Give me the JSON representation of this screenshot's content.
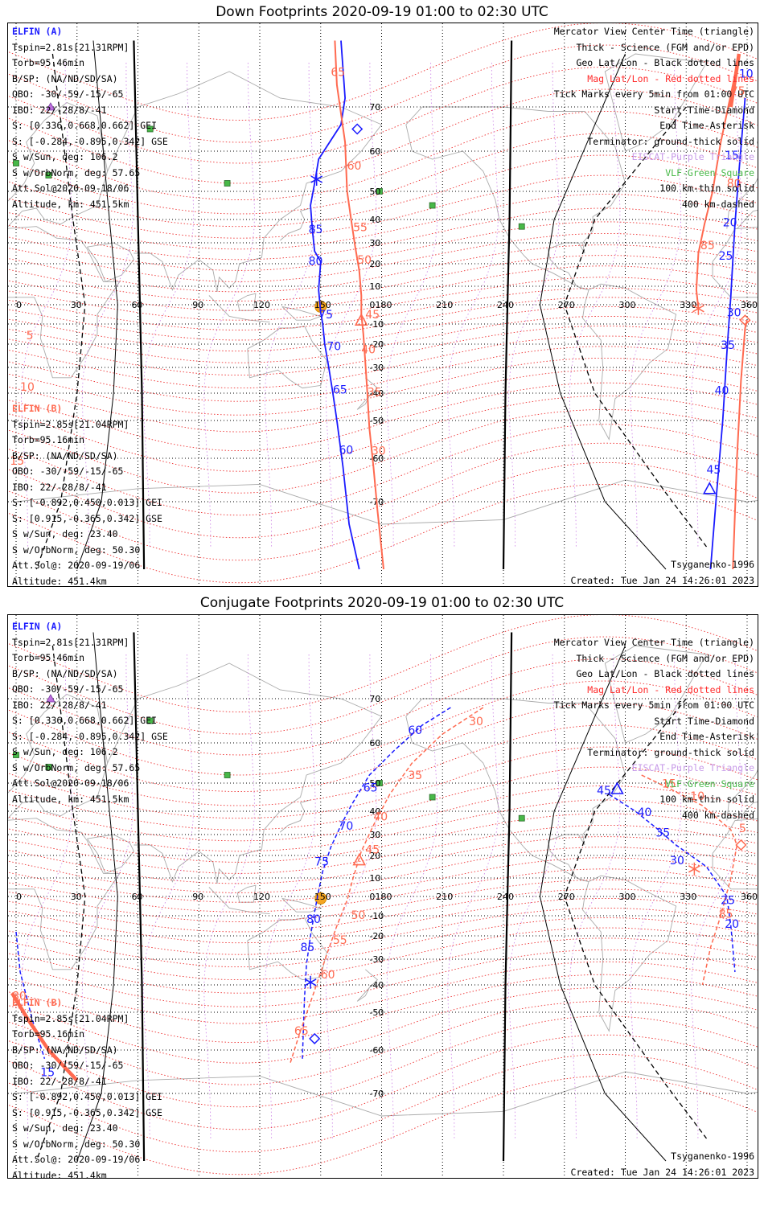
{
  "panels": [
    {
      "title": "Down Footprints 2020-09-19 01:00 to 02:30 UTC",
      "elfin_a": {
        "header": "ELFIN (A)",
        "lines": [
          "Tspin=2.81s[21.31RPM]",
          "Torb=95.46min",
          "B/SP: (NA/ND/SD/SA)",
          "OBO: -30/-59/-15/-65",
          "IBO: 22/-28/8/-41",
          "S: [0.336,0.668,0.662] GEI",
          "S: [-0.284,-0.895,0.342] GSE",
          "S w/Sun, deg: 106.2",
          "S w/OrbNorm, deg: 57.65",
          "Att.Sol@2020-09-18/06",
          "Altitude, km: 451.5km"
        ]
      },
      "elfin_b": {
        "header": "ELFIN (B)",
        "lines": [
          "Tspin=2.85s[21.04RPM]",
          "Torb=95.16min",
          "B/SP: (NA/ND/SD/SA)",
          "OBO: -30/-59/-15/-65",
          "IBO: 22/-28/8/-41",
          "S: [-0.892,0.450,0.013] GEI",
          "S: [0.915,-0.365,0.342] GSE",
          "S w/Sun, deg: 23.40",
          "S w/OrbNorm, deg: 50.30",
          "Att.Sol@: 2020-09-19/06",
          "Altitude: 451.4km"
        ]
      },
      "legend": [
        "Mercator View Center Time (triangle)",
        "Thick - Science (FGM and/or EPD)",
        "Geo Lat/Lon - Black dotted lines",
        "Mag Lat/Lon - Red dotted lines",
        "Tick Marks every 5min from 01:00 UTC",
        "Start Time-Diamond",
        "End Time-Asterisk",
        "Terminator: ground-thick solid",
        "EISCAT-Purple Triangle",
        "VLF-Green Square",
        "100 km-thin solid",
        "400 km-dashed"
      ],
      "model": "Tsyganenko-1996",
      "created": "Created: Tue Jan 24 14:26:01 2023",
      "blue_ticks": [
        {
          "t": "10",
          "lon": 356,
          "lat": 76.6
        },
        {
          "t": "15",
          "lon": 349,
          "lat": 58
        },
        {
          "t": "20",
          "lon": 348,
          "lat": 37
        },
        {
          "t": "25",
          "lon": 346,
          "lat": 22
        },
        {
          "t": "30",
          "lon": 350,
          "lat": -6
        },
        {
          "t": "35",
          "lon": 347,
          "lat": -22
        },
        {
          "t": "40",
          "lon": 344,
          "lat": -40.5
        },
        {
          "t": "45",
          "lon": 340,
          "lat": -63.5
        },
        {
          "t": "85",
          "lon": 144,
          "lat": 34.2
        },
        {
          "t": "80",
          "lon": 144,
          "lat": 19.5
        },
        {
          "t": "75",
          "lon": 149,
          "lat": -7
        },
        {
          "t": "70",
          "lon": 153,
          "lat": -22.5
        },
        {
          "t": "65",
          "lon": 156,
          "lat": -40.2
        },
        {
          "t": "60",
          "lon": 159,
          "lat": -58.8
        }
      ],
      "red_ticks": [
        {
          "t": "65",
          "lon": 155,
          "lat": 77
        },
        {
          "t": "60",
          "lon": 163,
          "lat": 55.4
        },
        {
          "t": "55",
          "lon": 166,
          "lat": 35
        },
        {
          "t": "50",
          "lon": 168,
          "lat": 20
        },
        {
          "t": "45",
          "lon": 172,
          "lat": -7
        },
        {
          "t": "40",
          "lon": 170,
          "lat": -24
        },
        {
          "t": "35",
          "lon": 173,
          "lat": -41
        },
        {
          "t": "30",
          "lon": 175,
          "lat": -59
        },
        {
          "t": "75",
          "lon": 352,
          "lat": 72.7
        },
        {
          "t": "80",
          "lon": 350,
          "lat": 51
        },
        {
          "t": "85",
          "lon": 337,
          "lat": 27
        },
        {
          "t": "5",
          "lon": 5,
          "lat": -17.5
        },
        {
          "t": "10",
          "lon": 2,
          "lat": -39
        },
        {
          "t": "15",
          "lon": -3,
          "lat": -61.5
        }
      ],
      "triangles": [
        {
          "lon": 170,
          "lat": -8,
          "c": "red"
        },
        {
          "lon": 341.5,
          "lat": -67,
          "c": "blue"
        }
      ],
      "diamonds": [
        {
          "lon": 168,
          "lat": 65,
          "c": "blue"
        },
        {
          "lon": 359,
          "lat": -8,
          "c": "red"
        }
      ],
      "asterisks": [
        {
          "lon": 148,
          "lat": 53,
          "c": "blue"
        },
        {
          "lon": 336,
          "lat": -2,
          "c": "red"
        }
      ]
    },
    {
      "title": "Conjugate Footprints 2020-09-19 01:00 to 02:30 UTC",
      "elfin_a": {
        "header": "ELFIN (A)",
        "lines": [
          "Tspin=2.81s[21.31RPM]",
          "Torb=95.46min",
          "B/SP: (NA/ND/SD/SA)",
          "OBO: -30/-59/-15/-65",
          "IBO: 22/-28/8/-41",
          "S: [0.336,0.668,0.662] GEI",
          "S: [-0.284,-0.895,0.342] GSE",
          "S w/Sun, deg: 106.2",
          "S w/OrbNorm, deg: 57.65",
          "Att.Sol@2020-09-18/06",
          "Altitude, km: 451.5km"
        ]
      },
      "elfin_b": {
        "header": "ELFIN (B)",
        "lines": [
          "Tspin=2.85s[21.04RPM]",
          "Torb=95.16min",
          "B/SP: (NA/ND/SD/SA)",
          "OBO: -30/-59/-15/-65",
          "IBO: 22/-28/8/-41",
          "S: [-0.892,0.450,0.013] GEI",
          "S: [0.915,-0.365,0.342] GSE",
          "S w/Sun, deg: 23.40",
          "S w/OrbNorm, deg: 50.30",
          "Att.Sol@: 2020-09-19/06",
          "Altitude: 451.4km"
        ]
      },
      "legend": [
        "Mercator View Center Time (triangle)",
        "Thick - Science (FGM and/or EPD)",
        "Geo Lat/Lon - Black dotted lines",
        "Mag Lat/Lon - Red dotted lines",
        "Tick Marks every 5min from 01:00 UTC",
        "Start Time-Diamond",
        "End Time-Asterisk",
        "Terminator: ground-thick solid",
        "EISCAT-Purple Triangle",
        "VLF-Green Square",
        "100 km-thin solid",
        "400 km-dashed"
      ],
      "model": "Tsyganenko-1996",
      "created": "Created: Tue Jan 24 14:26:01 2023",
      "blue_ticks": [
        {
          "t": "60",
          "lon": 193,
          "lat": 62
        },
        {
          "t": "65",
          "lon": 171,
          "lat": 47
        },
        {
          "t": "70",
          "lon": 159,
          "lat": 32
        },
        {
          "t": "75",
          "lon": 147,
          "lat": 15.5
        },
        {
          "t": "80",
          "lon": 143,
          "lat": -13.5
        },
        {
          "t": "85",
          "lon": 140,
          "lat": -26.5
        },
        {
          "t": "15",
          "lon": 12,
          "lat": -66
        },
        {
          "t": "45",
          "lon": 286,
          "lat": 46
        },
        {
          "t": "40",
          "lon": 306,
          "lat": 38
        },
        {
          "t": "35",
          "lon": 315,
          "lat": 29
        },
        {
          "t": "30",
          "lon": 322,
          "lat": 16
        },
        {
          "t": "25",
          "lon": 347,
          "lat": -4
        },
        {
          "t": "20",
          "lon": 349,
          "lat": -16
        }
      ],
      "red_ticks": [
        {
          "t": "30",
          "lon": 223,
          "lat": 64
        },
        {
          "t": "35",
          "lon": 193,
          "lat": 51
        },
        {
          "t": "40",
          "lon": 176,
          "lat": 36
        },
        {
          "t": "45",
          "lon": 172,
          "lat": 21
        },
        {
          "t": "50",
          "lon": 165,
          "lat": -11.5
        },
        {
          "t": "55",
          "lon": 156,
          "lat": -23.5
        },
        {
          "t": "60",
          "lon": 150,
          "lat": -37.5
        },
        {
          "t": "65",
          "lon": 137,
          "lat": -56
        },
        {
          "t": "80",
          "lon": -2,
          "lat": -45.5
        },
        {
          "t": "15",
          "lon": 318,
          "lat": 48.5
        },
        {
          "t": "10",
          "lon": 332,
          "lat": 44
        },
        {
          "t": "5",
          "lon": 356,
          "lat": 31
        },
        {
          "t": "85",
          "lon": 346,
          "lat": -11
        }
      ],
      "triangles": [
        {
          "lon": 169,
          "lat": 18,
          "c": "red"
        },
        {
          "lon": 296,
          "lat": 48,
          "c": "blue"
        }
      ],
      "diamonds": [
        {
          "lon": 147,
          "lat": -57,
          "c": "blue"
        },
        {
          "lon": 357,
          "lat": 25,
          "c": "red"
        }
      ],
      "asterisks": [
        {
          "lon": 145,
          "lat": -39,
          "c": "blue"
        },
        {
          "lon": 334,
          "lat": 14,
          "c": "red"
        }
      ]
    }
  ],
  "lon_labels": [
    "0",
    "30",
    "60",
    "90",
    "120",
    "150",
    "180",
    "210",
    "240",
    "270",
    "300",
    "330",
    "360"
  ],
  "lat_labels": [
    "70",
    "60",
    "50",
    "40",
    "30",
    "20",
    "10",
    "0",
    "-10",
    "-20",
    "-30",
    "-40",
    "-50",
    "-60",
    "-70"
  ],
  "colors": {
    "blue": "#1a1aff",
    "red": "#ff6a50",
    "purple": "#c79ae8",
    "green": "#48b848",
    "sun": "#f5a623",
    "coast": "#aaaaaa"
  }
}
